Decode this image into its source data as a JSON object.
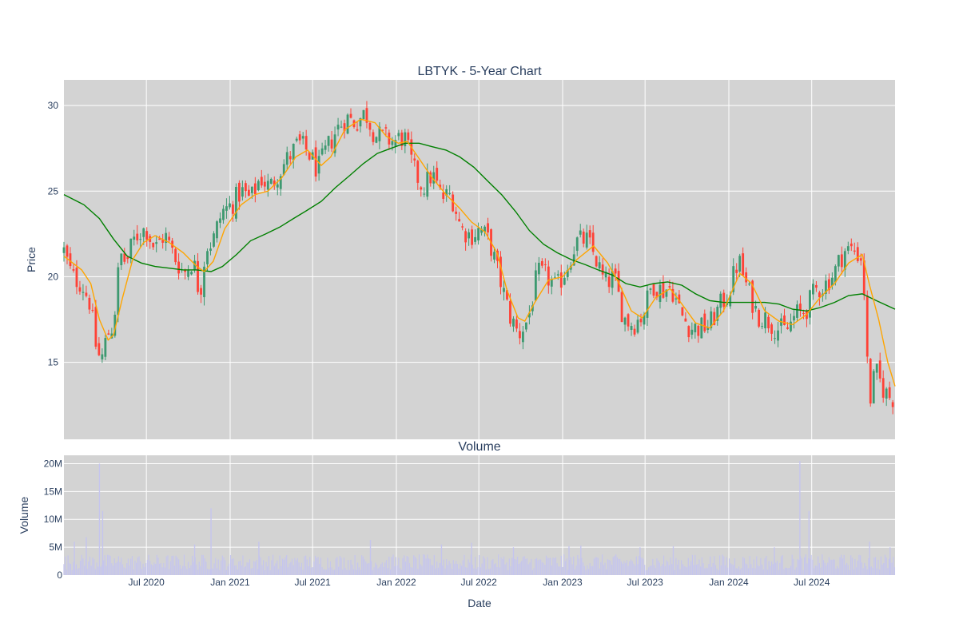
{
  "chart_data": [
    {
      "type": "candlestick",
      "title": "LBTYK - 5-Year Chart",
      "ylabel": "Price",
      "xlabel": "",
      "xlim": [
        "2020-01-02",
        "2024-12-31"
      ],
      "ylim": [
        10.5,
        31.5
      ],
      "yticks": [
        15,
        20,
        25,
        30
      ],
      "xticks": [
        {
          "date": "2020-07-01",
          "label": "Jul 2020"
        },
        {
          "date": "2021-01-01",
          "label": "Jan 2021"
        },
        {
          "date": "2021-07-01",
          "label": "Jul 2021"
        },
        {
          "date": "2022-01-01",
          "label": "Jan 2022"
        },
        {
          "date": "2022-07-01",
          "label": "Jul 2022"
        },
        {
          "date": "2023-01-01",
          "label": "Jan 2023"
        },
        {
          "date": "2023-07-01",
          "label": "Jul 2023"
        },
        {
          "date": "2024-01-01",
          "label": "Jan 2024"
        },
        {
          "date": "2024-07-01",
          "label": "Jul 2024"
        }
      ],
      "grid": true,
      "colors": {
        "up": "#3d9970",
        "down": "#ff4136",
        "ma_short": "#ffa500",
        "ma_long": "#008000",
        "background": "#d3d3d3"
      },
      "close_series": {
        "name": "",
        "points": [
          [
            "2020-01-02",
            21.5
          ],
          [
            "2020-01-20",
            20.0
          ],
          [
            "2020-02-10",
            19.6
          ],
          [
            "2020-02-28",
            18.5
          ],
          [
            "2020-03-12",
            16.0
          ],
          [
            "2020-03-23",
            15.0
          ],
          [
            "2020-04-06",
            16.6
          ],
          [
            "2020-04-20",
            17.2
          ],
          [
            "2020-05-04",
            21.3
          ],
          [
            "2020-05-18",
            20.8
          ],
          [
            "2020-06-01",
            22.0
          ],
          [
            "2020-06-15",
            22.6
          ],
          [
            "2020-07-01",
            22.8
          ],
          [
            "2020-07-20",
            21.6
          ],
          [
            "2020-08-10",
            22.5
          ],
          [
            "2020-08-31",
            21.2
          ],
          [
            "2020-09-21",
            20.2
          ],
          [
            "2020-10-12",
            21.0
          ],
          [
            "2020-10-26",
            18.9
          ],
          [
            "2020-11-09",
            21.8
          ],
          [
            "2020-11-23",
            22.0
          ],
          [
            "2020-12-14",
            23.8
          ],
          [
            "2021-01-04",
            24.2
          ],
          [
            "2021-01-25",
            25.0
          ],
          [
            "2021-02-15",
            24.5
          ],
          [
            "2021-03-08",
            25.8
          ],
          [
            "2021-03-29",
            25.2
          ],
          [
            "2021-04-19",
            26.2
          ],
          [
            "2021-05-10",
            27.0
          ],
          [
            "2021-05-31",
            27.8
          ],
          [
            "2021-06-21",
            27.3
          ],
          [
            "2021-07-12",
            26.2
          ],
          [
            "2021-08-02",
            27.5
          ],
          [
            "2021-08-23",
            28.6
          ],
          [
            "2021-09-13",
            29.3
          ],
          [
            "2021-10-04",
            29.0
          ],
          [
            "2021-10-25",
            29.6
          ],
          [
            "2021-11-15",
            28.3
          ],
          [
            "2021-12-06",
            28.1
          ],
          [
            "2021-12-27",
            27.9
          ],
          [
            "2022-01-18",
            28.2
          ],
          [
            "2022-02-07",
            26.3
          ],
          [
            "2022-02-28",
            25.2
          ],
          [
            "2022-03-21",
            26.0
          ],
          [
            "2022-04-11",
            24.6
          ],
          [
            "2022-05-02",
            24.8
          ],
          [
            "2022-05-23",
            22.8
          ],
          [
            "2022-06-13",
            22.4
          ],
          [
            "2022-07-05",
            22.8
          ],
          [
            "2022-07-25",
            22.0
          ],
          [
            "2022-08-15",
            20.0
          ],
          [
            "2022-09-06",
            17.8
          ],
          [
            "2022-09-26",
            16.6
          ],
          [
            "2022-10-17",
            17.5
          ],
          [
            "2022-11-07",
            20.2
          ],
          [
            "2022-11-28",
            20.0
          ],
          [
            "2022-12-19",
            19.3
          ],
          [
            "2023-01-09",
            20.5
          ],
          [
            "2023-01-30",
            22.0
          ],
          [
            "2023-02-21",
            22.2
          ],
          [
            "2023-03-13",
            21.2
          ],
          [
            "2023-04-03",
            19.6
          ],
          [
            "2023-04-24",
            20.0
          ],
          [
            "2023-05-15",
            17.6
          ],
          [
            "2023-06-05",
            17.2
          ],
          [
            "2023-06-26",
            17.8
          ],
          [
            "2023-07-17",
            19.6
          ],
          [
            "2023-08-07",
            19.2
          ],
          [
            "2023-08-28",
            19.4
          ],
          [
            "2023-09-18",
            17.8
          ],
          [
            "2023-10-09",
            17.0
          ],
          [
            "2023-10-30",
            17.0
          ],
          [
            "2023-11-20",
            17.2
          ],
          [
            "2023-12-11",
            18.2
          ],
          [
            "2024-01-02",
            19.2
          ],
          [
            "2024-01-22",
            21.0
          ],
          [
            "2024-02-12",
            19.2
          ],
          [
            "2024-03-04",
            17.8
          ],
          [
            "2024-03-25",
            17.5
          ],
          [
            "2024-04-15",
            17.0
          ],
          [
            "2024-05-06",
            16.8
          ],
          [
            "2024-05-27",
            17.8
          ],
          [
            "2024-06-17",
            18.0
          ],
          [
            "2024-07-08",
            19.2
          ],
          [
            "2024-07-29",
            19.5
          ],
          [
            "2024-08-19",
            20.2
          ],
          [
            "2024-09-09",
            21.5
          ],
          [
            "2024-09-30",
            21.6
          ],
          [
            "2024-10-21",
            21.0
          ],
          [
            "2024-11-04",
            12.5
          ],
          [
            "2024-11-18",
            14.5
          ],
          [
            "2024-12-02",
            13.6
          ],
          [
            "2024-12-16",
            13.0
          ],
          [
            "2024-12-31",
            12.9
          ]
        ]
      },
      "ma_short": {
        "name": "",
        "points": [
          [
            "2020-01-02",
            21.2
          ],
          [
            "2020-02-10",
            20.4
          ],
          [
            "2020-03-01",
            19.6
          ],
          [
            "2020-03-20",
            17.5
          ],
          [
            "2020-04-08",
            16.3
          ],
          [
            "2020-04-20",
            16.6
          ],
          [
            "2020-05-10",
            18.8
          ],
          [
            "2020-06-01",
            21.0
          ],
          [
            "2020-06-25",
            22.0
          ],
          [
            "2020-07-20",
            22.4
          ],
          [
            "2020-08-20",
            22.0
          ],
          [
            "2020-09-20",
            21.4
          ],
          [
            "2020-10-20",
            20.6
          ],
          [
            "2020-11-05",
            20.3
          ],
          [
            "2020-11-25",
            20.9
          ],
          [
            "2020-12-20",
            22.8
          ],
          [
            "2021-01-25",
            24.2
          ],
          [
            "2021-02-25",
            24.8
          ],
          [
            "2021-03-25",
            25.0
          ],
          [
            "2021-04-25",
            25.8
          ],
          [
            "2021-05-25",
            27.0
          ],
          [
            "2021-06-20",
            27.4
          ],
          [
            "2021-07-20",
            26.5
          ],
          [
            "2021-08-10",
            27.0
          ],
          [
            "2021-09-10",
            28.6
          ],
          [
            "2021-10-15",
            29.2
          ],
          [
            "2021-11-15",
            29.0
          ],
          [
            "2021-12-10",
            28.2
          ],
          [
            "2022-01-05",
            27.8
          ],
          [
            "2022-01-25",
            27.9
          ],
          [
            "2022-02-20",
            26.9
          ],
          [
            "2022-03-20",
            25.8
          ],
          [
            "2022-04-20",
            24.8
          ],
          [
            "2022-05-20",
            24.0
          ],
          [
            "2022-06-15",
            23.2
          ],
          [
            "2022-07-15",
            22.6
          ],
          [
            "2022-08-10",
            21.4
          ],
          [
            "2022-09-01",
            19.2
          ],
          [
            "2022-09-25",
            17.6
          ],
          [
            "2022-10-10",
            17.4
          ],
          [
            "2022-11-01",
            18.5
          ],
          [
            "2022-12-01",
            19.8
          ],
          [
            "2023-01-01",
            20.0
          ],
          [
            "2023-02-01",
            21.0
          ],
          [
            "2023-03-10",
            21.8
          ],
          [
            "2023-04-10",
            20.8
          ],
          [
            "2023-05-05",
            19.6
          ],
          [
            "2023-06-01",
            18.0
          ],
          [
            "2023-06-25",
            17.6
          ],
          [
            "2023-07-25",
            18.8
          ],
          [
            "2023-08-25",
            19.3
          ],
          [
            "2023-09-20",
            18.4
          ],
          [
            "2023-10-20",
            17.3
          ],
          [
            "2023-11-20",
            17.0
          ],
          [
            "2023-12-20",
            18.0
          ],
          [
            "2024-01-25",
            20.2
          ],
          [
            "2024-02-20",
            19.6
          ],
          [
            "2024-03-20",
            18.0
          ],
          [
            "2024-04-20",
            17.4
          ],
          [
            "2024-05-20",
            17.2
          ],
          [
            "2024-06-20",
            17.8
          ],
          [
            "2024-07-20",
            18.8
          ],
          [
            "2024-08-20",
            19.6
          ],
          [
            "2024-09-20",
            20.8
          ],
          [
            "2024-10-20",
            21.3
          ],
          [
            "2024-11-05",
            19.5
          ],
          [
            "2024-11-25",
            17.5
          ],
          [
            "2024-12-15",
            15.0
          ],
          [
            "2024-12-31",
            13.6
          ]
        ]
      },
      "ma_long": {
        "name": "",
        "points": [
          [
            "2020-01-02",
            24.8
          ],
          [
            "2020-02-15",
            24.2
          ],
          [
            "2020-03-20",
            23.4
          ],
          [
            "2020-04-20",
            22.2
          ],
          [
            "2020-05-20",
            21.2
          ],
          [
            "2020-06-20",
            20.8
          ],
          [
            "2020-07-20",
            20.6
          ],
          [
            "2020-08-20",
            20.5
          ],
          [
            "2020-09-20",
            20.4
          ],
          [
            "2020-10-20",
            20.4
          ],
          [
            "2020-11-20",
            20.3
          ],
          [
            "2020-12-15",
            20.6
          ],
          [
            "2021-01-15",
            21.3
          ],
          [
            "2021-02-15",
            22.1
          ],
          [
            "2021-03-20",
            22.5
          ],
          [
            "2021-04-20",
            22.9
          ],
          [
            "2021-05-20",
            23.4
          ],
          [
            "2021-06-20",
            23.9
          ],
          [
            "2021-07-20",
            24.4
          ],
          [
            "2021-08-20",
            25.2
          ],
          [
            "2021-09-20",
            25.9
          ],
          [
            "2021-10-20",
            26.6
          ],
          [
            "2021-11-20",
            27.2
          ],
          [
            "2021-12-20",
            27.5
          ],
          [
            "2022-01-20",
            27.8
          ],
          [
            "2022-02-20",
            27.8
          ],
          [
            "2022-03-20",
            27.6
          ],
          [
            "2022-04-20",
            27.4
          ],
          [
            "2022-05-20",
            27.0
          ],
          [
            "2022-06-20",
            26.4
          ],
          [
            "2022-07-20",
            25.6
          ],
          [
            "2022-08-20",
            24.8
          ],
          [
            "2022-09-20",
            23.8
          ],
          [
            "2022-10-20",
            22.7
          ],
          [
            "2022-11-20",
            21.9
          ],
          [
            "2022-12-20",
            21.4
          ],
          [
            "2023-01-20",
            21.0
          ],
          [
            "2023-02-20",
            20.7
          ],
          [
            "2023-03-20",
            20.4
          ],
          [
            "2023-04-20",
            20.1
          ],
          [
            "2023-05-20",
            19.6
          ],
          [
            "2023-06-20",
            19.4
          ],
          [
            "2023-07-20",
            19.6
          ],
          [
            "2023-08-20",
            19.7
          ],
          [
            "2023-09-20",
            19.5
          ],
          [
            "2023-10-20",
            19.0
          ],
          [
            "2023-11-20",
            18.6
          ],
          [
            "2023-12-20",
            18.5
          ],
          [
            "2024-01-20",
            18.5
          ],
          [
            "2024-02-20",
            18.5
          ],
          [
            "2024-03-20",
            18.5
          ],
          [
            "2024-04-20",
            18.4
          ],
          [
            "2024-05-20",
            18.1
          ],
          [
            "2024-06-20",
            18.0
          ],
          [
            "2024-07-20",
            18.2
          ],
          [
            "2024-08-20",
            18.5
          ],
          [
            "2024-09-20",
            18.9
          ],
          [
            "2024-10-20",
            19.0
          ],
          [
            "2024-11-20",
            18.6
          ],
          [
            "2024-12-31",
            18.1
          ]
        ]
      }
    },
    {
      "type": "bar",
      "title": "Volume",
      "ylabel": "Volume",
      "xlabel": "Date",
      "ylim": [
        0,
        21500000
      ],
      "yticks": [
        {
          "value": 0,
          "label": "0"
        },
        {
          "value": 5000000,
          "label": "5M"
        },
        {
          "value": 10000000,
          "label": "10M"
        },
        {
          "value": 15000000,
          "label": "15M"
        },
        {
          "value": 20000000,
          "label": "20M"
        }
      ],
      "color": "#c5c5ee",
      "baseline_volume": 2200000,
      "spikes": [
        [
          "2020-03-20",
          20000000
        ],
        [
          "2020-03-27",
          11500000
        ],
        [
          "2020-01-25",
          6000000
        ],
        [
          "2020-02-20",
          6800000
        ],
        [
          "2020-11-20",
          12000000
        ],
        [
          "2020-10-15",
          5500000
        ],
        [
          "2021-03-05",
          6000000
        ],
        [
          "2021-11-05",
          6300000
        ],
        [
          "2022-04-10",
          5500000
        ],
        [
          "2022-06-15",
          5800000
        ],
        [
          "2022-09-15",
          5000000
        ],
        [
          "2023-01-15",
          5200000
        ],
        [
          "2023-02-10",
          5300000
        ],
        [
          "2023-06-20",
          5000000
        ],
        [
          "2023-09-01",
          5200000
        ],
        [
          "2024-04-10",
          5000000
        ],
        [
          "2024-06-05",
          20500000
        ],
        [
          "2024-06-25",
          11500000
        ],
        [
          "2024-11-05",
          6000000
        ],
        [
          "2024-12-20",
          5000000
        ]
      ]
    }
  ]
}
